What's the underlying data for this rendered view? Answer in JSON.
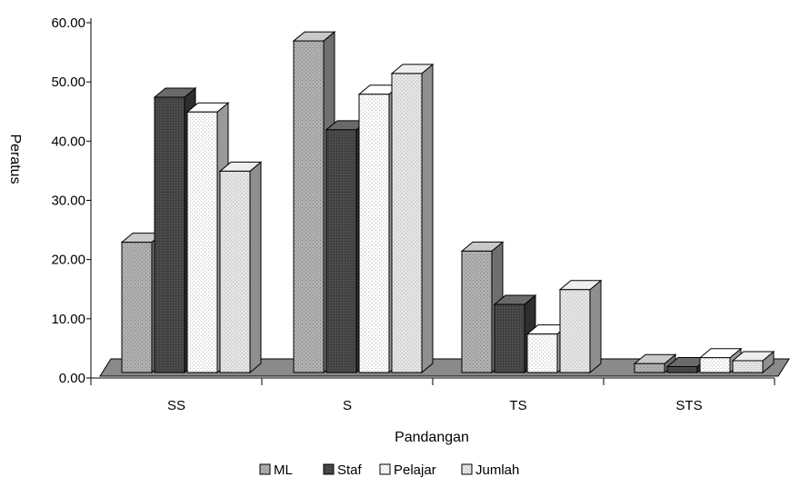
{
  "chart_data": {
    "type": "bar",
    "style": "3d-clustered-column",
    "title": "",
    "xlabel": "Pandangan",
    "ylabel": "Peratus",
    "ylim": [
      0,
      60
    ],
    "yticks": [
      "0.00",
      "10.00",
      "20.00",
      "30.00",
      "40.00",
      "50.00",
      "60.00"
    ],
    "categories": [
      "SS",
      "S",
      "TS",
      "STS"
    ],
    "series": [
      {
        "name": "ML",
        "color": "#a9a9a9",
        "pattern": "stipple",
        "values": [
          22.0,
          56.0,
          20.5,
          1.5
        ]
      },
      {
        "name": "Staf",
        "color": "#555555",
        "pattern": "dark",
        "values": [
          46.5,
          41.0,
          11.5,
          1.0
        ]
      },
      {
        "name": "Pelajar",
        "color": "#f2f2f2",
        "pattern": "dots",
        "values": [
          44.0,
          47.0,
          6.5,
          2.5
        ]
      },
      {
        "name": "Jumlah",
        "color": "#dcdcdc",
        "pattern": "light",
        "values": [
          34.0,
          50.5,
          14.0,
          2.0
        ]
      }
    ],
    "legend_position": "bottom-center",
    "grid": false
  }
}
